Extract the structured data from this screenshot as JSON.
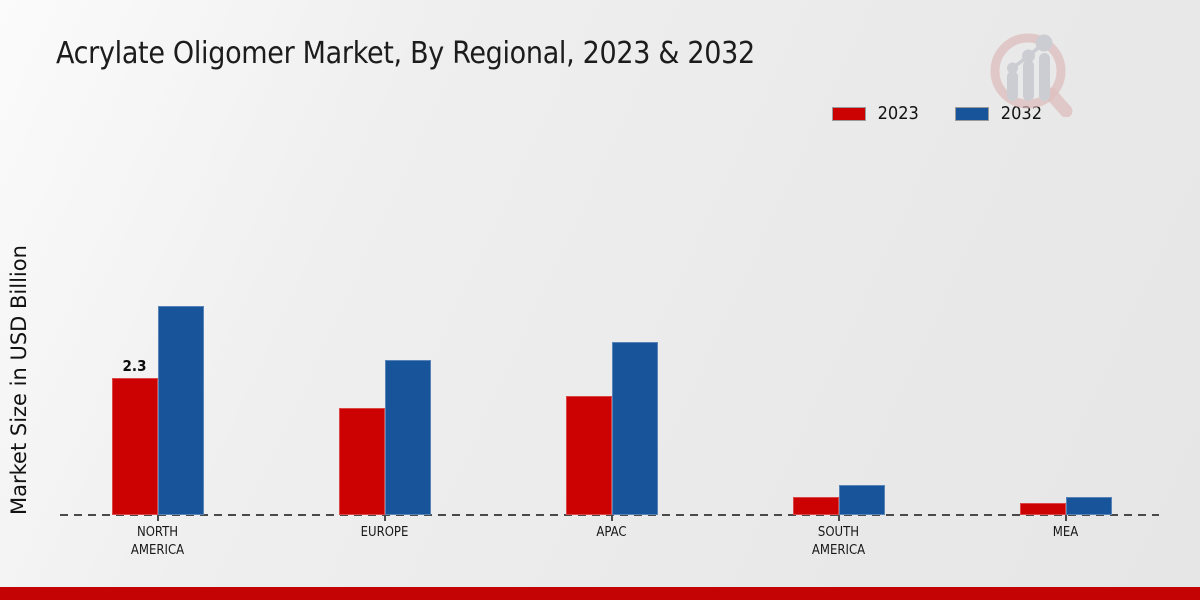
{
  "title": "Acrylate Oligomer Market, By Regional, 2023 & 2032",
  "y_axis_label": "Market Size in USD Billion",
  "legend": {
    "items": [
      {
        "label": "2023",
        "color": "#cc0101"
      },
      {
        "label": "2032",
        "color": "#17549a"
      }
    ]
  },
  "chart_data": {
    "type": "bar",
    "title": "Acrylate Oligomer Market, By Regional, 2023 & 2032",
    "xlabel": "",
    "ylabel": "Market Size in USD Billion",
    "ylim": [
      0,
      3.6
    ],
    "grid": false,
    "legend_position": "top-right",
    "baseline_style": "dashed",
    "categories": [
      "NORTH AMERICA",
      "EUROPE",
      "APAC",
      "SOUTH AMERICA",
      "MEA"
    ],
    "category_label_lines": [
      [
        "NORTH",
        "AMERICA"
      ],
      [
        "EUROPE"
      ],
      [
        "APAC"
      ],
      [
        "SOUTH",
        "AMERICA"
      ],
      [
        "MEA"
      ]
    ],
    "series": [
      {
        "name": "2023",
        "color": "#cc0101",
        "values": [
          2.3,
          1.8,
          2.0,
          0.3,
          0.2
        ],
        "value_labels": [
          "2.3",
          "",
          "",
          "",
          ""
        ]
      },
      {
        "name": "2032",
        "color": "#17549a",
        "values": [
          3.5,
          2.6,
          2.9,
          0.5,
          0.3
        ],
        "value_labels": [
          "",
          "",
          "",
          "",
          ""
        ]
      }
    ]
  },
  "colors": {
    "series_2023": "#cc0101",
    "series_2032": "#17549a",
    "footer_accent": "#c40404",
    "baseline": "#4a4a4a",
    "background": "#ebebeb"
  },
  "watermark": {
    "name": "market-research-future-logo"
  }
}
